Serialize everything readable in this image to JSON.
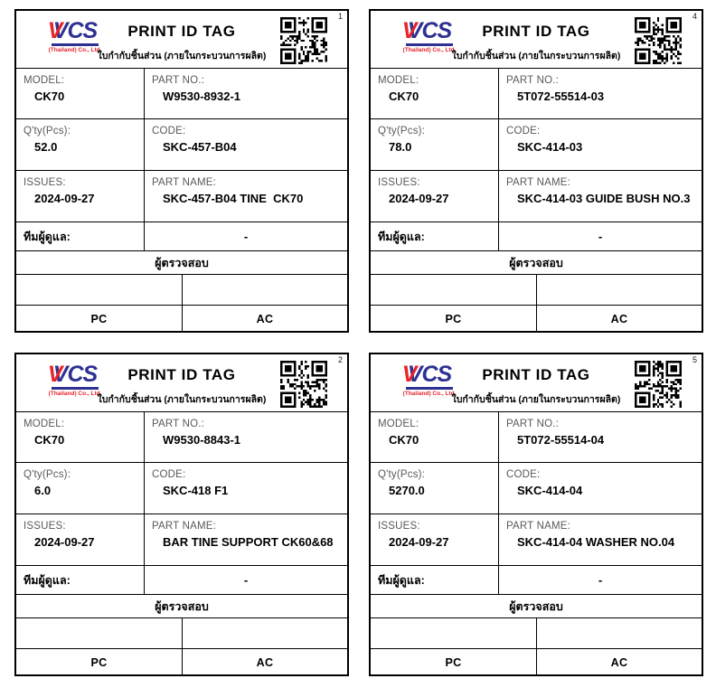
{
  "labels": {
    "title": "PRINT ID TAG",
    "subtitle": "ใบกำกับชิ้นส่วน (ภายในกระบวนการผลิต)",
    "logo": {
      "accent_letter": "V",
      "text": "VCS",
      "subtext": "(Thailand) Co., Ltd."
    },
    "model": "MODEL:",
    "part_no": "PART NO.:",
    "qty": "Q'ty(Pcs):",
    "code": "CODE:",
    "issues": "ISSUES:",
    "part_name": "PART NAME:",
    "caretaker": "ทีมผู้ดูแล:",
    "inspector": "ผู้ตรวจสอบ",
    "pc": "PC",
    "ac": "AC"
  },
  "colors": {
    "logo_blue": "#2e3192",
    "logo_red": "#e8242b",
    "label_gray": "#595959",
    "border": "#000000"
  },
  "tags": [
    {
      "number": "1",
      "model": "CK70",
      "part_no": "W9530-8932-1",
      "qty": "52.0",
      "code": "SKC-457-B04",
      "issues": "2024-09-27",
      "part_name": "SKC-457-B04 TINE  CK70",
      "caretaker_value": "-"
    },
    {
      "number": "4",
      "model": "CK70",
      "part_no": "5T072-55514-03",
      "qty": "78.0",
      "code": "SKC-414-03",
      "issues": "2024-09-27",
      "part_name": "SKC-414-03 GUIDE BUSH NO.3",
      "caretaker_value": "-"
    },
    {
      "number": "2",
      "model": "CK70",
      "part_no": "W9530-8843-1",
      "qty": "6.0",
      "code": "SKC-418 F1",
      "issues": "2024-09-27",
      "part_name": "BAR TINE SUPPORT CK60&68",
      "caretaker_value": "-"
    },
    {
      "number": "5",
      "model": "CK70",
      "part_no": "5T072-55514-04",
      "qty": "5270.0",
      "code": "SKC-414-04",
      "issues": "2024-09-27",
      "part_name": "SKC-414-04 WASHER NO.04",
      "caretaker_value": "-"
    }
  ]
}
